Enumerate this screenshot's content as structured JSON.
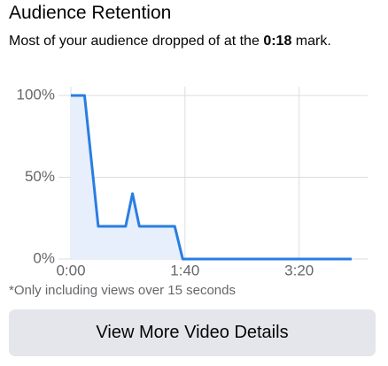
{
  "header": {
    "title": "Audience Retention"
  },
  "summary": {
    "before": "Most of your audience dropped of at the",
    "highlight": "0:18",
    "after": "mark."
  },
  "chart_data": {
    "type": "area",
    "x": [
      0,
      12,
      24,
      48,
      54,
      60,
      91,
      98,
      246
    ],
    "values": [
      100,
      100,
      20,
      20,
      40,
      20,
      20,
      0,
      0
    ],
    "color": "#2a7de1",
    "fill": "#e6effb",
    "xlim": [
      0,
      260
    ],
    "ylim": [
      0,
      100
    ],
    "xticks": [
      {
        "value": 0,
        "label": "0:00"
      },
      {
        "value": 100,
        "label": "1:40"
      },
      {
        "value": 200,
        "label": "3:20"
      }
    ],
    "yticks": [
      {
        "value": 0,
        "label": "0%"
      },
      {
        "value": 50,
        "label": "50%"
      },
      {
        "value": 100,
        "label": "100%"
      }
    ],
    "grid": true
  },
  "footnote": "*Only including views over 15 seconds",
  "button": {
    "label": "View More Video Details"
  }
}
